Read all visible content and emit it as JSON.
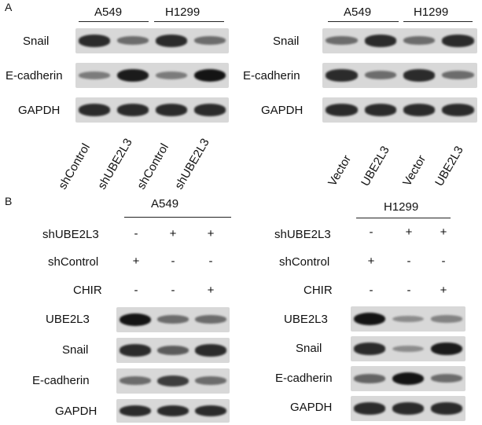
{
  "panels": {
    "a": "A",
    "b": "B"
  },
  "panel_a": {
    "left": {
      "cell_lines": [
        "A549",
        "H1299"
      ],
      "rows": [
        {
          "label": "Snail",
          "levels": [
            0.85,
            0.45,
            0.85,
            0.45
          ]
        },
        {
          "label": "E-cadherin",
          "levels": [
            0.35,
            0.95,
            0.35,
            1.0
          ]
        },
        {
          "label": "GAPDH",
          "levels": [
            0.85,
            0.85,
            0.85,
            0.85
          ]
        }
      ],
      "lanes": [
        "shControl",
        "shUBE2L3",
        "shControl",
        "shUBE2L3"
      ]
    },
    "right": {
      "cell_lines": [
        "A549",
        "H1299"
      ],
      "rows": [
        {
          "label": "Snail",
          "levels": [
            0.45,
            0.85,
            0.45,
            0.85
          ]
        },
        {
          "label": "E-cadherin",
          "levels": [
            0.85,
            0.45,
            0.85,
            0.45
          ]
        },
        {
          "label": "GAPDH",
          "levels": [
            0.85,
            0.85,
            0.85,
            0.85
          ]
        }
      ],
      "lanes": [
        "Vector",
        "UBE2L3",
        "Vector",
        "UBE2L3"
      ]
    }
  },
  "panel_b": {
    "treatment_labels": [
      "shUBE2L3",
      "shControl",
      "CHIR"
    ],
    "left": {
      "cell_line": "A549",
      "signs": [
        [
          "-",
          "+",
          "+"
        ],
        [
          "+",
          "-",
          "-"
        ],
        [
          "-",
          "-",
          "+"
        ]
      ],
      "rows": [
        {
          "label": "UBE2L3",
          "levels": [
            1.0,
            0.45,
            0.45
          ]
        },
        {
          "label": "Snail",
          "levels": [
            0.85,
            0.55,
            0.85
          ]
        },
        {
          "label": "E-cadherin",
          "levels": [
            0.45,
            0.75,
            0.45
          ]
        },
        {
          "label": "GAPDH",
          "levels": [
            0.85,
            0.85,
            0.85
          ]
        }
      ]
    },
    "right": {
      "cell_line": "H1299",
      "signs": [
        [
          "-",
          "+",
          "+"
        ],
        [
          "+",
          "-",
          "-"
        ],
        [
          "-",
          "-",
          "+"
        ]
      ],
      "rows": [
        {
          "label": "UBE2L3",
          "levels": [
            1.0,
            0.25,
            0.3
          ]
        },
        {
          "label": "Snail",
          "levels": [
            0.85,
            0.25,
            0.95
          ]
        },
        {
          "label": "E-cadherin",
          "levels": [
            0.5,
            1.0,
            0.45
          ]
        },
        {
          "label": "GAPDH",
          "levels": [
            0.85,
            0.85,
            0.85
          ]
        }
      ]
    }
  },
  "colors": {
    "band": "#141414",
    "membrane": "#d8d8d8"
  }
}
